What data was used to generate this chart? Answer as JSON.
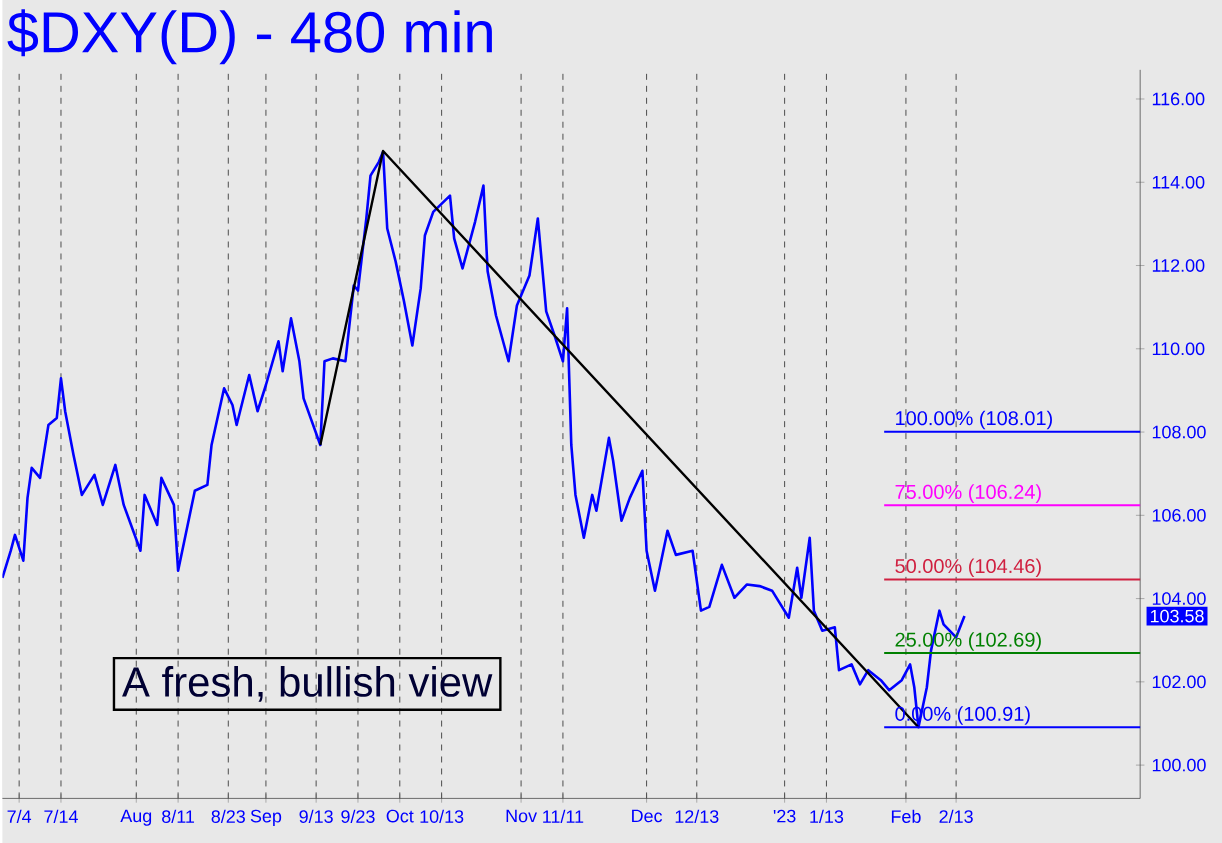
{
  "chart_data": {
    "type": "line",
    "title": "$DXY(D) - 480 min",
    "xlim": [
      "2022-06-30",
      "2023-03-29"
    ],
    "ylim": [
      99.2,
      116.7
    ],
    "xticks": [
      {
        "value": "2022-07-04",
        "label": "7/4"
      },
      {
        "value": "2022-07-14",
        "label": "7/14"
      },
      {
        "value": "2022-08-01",
        "label": "Aug"
      },
      {
        "value": "2022-08-11",
        "label": "8/11"
      },
      {
        "value": "2022-08-23",
        "label": "8/23"
      },
      {
        "value": "2022-09-01",
        "label": "Sep"
      },
      {
        "value": "2022-09-13",
        "label": "9/13"
      },
      {
        "value": "2022-09-23",
        "label": "9/23"
      },
      {
        "value": "2022-10-03",
        "label": "Oct"
      },
      {
        "value": "2022-10-13",
        "label": "10/13"
      },
      {
        "value": "2022-11-01",
        "label": "Nov"
      },
      {
        "value": "2022-11-11",
        "label": "11/11"
      },
      {
        "value": "2022-12-01",
        "label": "Dec"
      },
      {
        "value": "2022-12-13",
        "label": "12/13"
      },
      {
        "value": "2023-01-03",
        "label": "'23"
      },
      {
        "value": "2023-01-13",
        "label": "1/13"
      },
      {
        "value": "2023-02-01",
        "label": "Feb"
      },
      {
        "value": "2023-02-13",
        "label": "2/13"
      }
    ],
    "yticks": [
      {
        "value": 100,
        "label": "100.00"
      },
      {
        "value": 102,
        "label": "102.00"
      },
      {
        "value": 104,
        "label": "104.00"
      },
      {
        "value": 106,
        "label": "106.00"
      },
      {
        "value": 108,
        "label": "108.00"
      },
      {
        "value": 110,
        "label": "110.00"
      },
      {
        "value": 112,
        "label": "112.00"
      },
      {
        "value": 114,
        "label": "114.00"
      },
      {
        "value": 116,
        "label": "116.00"
      }
    ],
    "grid": "x",
    "marker": "none",
    "series": [
      {
        "color": "#0000ff",
        "x": [
          "2022-06-30",
          "2022-07-02",
          "2022-07-03",
          "2022-07-05",
          "2022-07-06",
          "2022-07-07",
          "2022-07-09",
          "2022-07-11",
          "2022-07-13",
          "2022-07-14",
          "2022-07-15",
          "2022-07-17",
          "2022-07-19",
          "2022-07-22",
          "2022-07-24",
          "2022-07-27",
          "2022-07-29",
          "2022-08-02",
          "2022-08-03",
          "2022-08-06",
          "2022-08-07",
          "2022-08-10",
          "2022-08-11",
          "2022-08-13",
          "2022-08-15",
          "2022-08-18",
          "2022-08-19",
          "2022-08-22",
          "2022-08-24",
          "2022-08-25",
          "2022-08-28",
          "2022-08-30",
          "2022-09-01",
          "2022-09-04",
          "2022-09-05",
          "2022-09-07",
          "2022-09-09",
          "2022-09-10",
          "2022-09-14",
          "2022-09-15",
          "2022-09-17",
          "2022-09-20",
          "2022-09-22",
          "2022-09-23",
          "2022-09-25",
          "2022-09-26",
          "2022-09-28",
          "2022-09-29",
          "2022-09-30",
          "2022-10-02",
          "2022-10-04",
          "2022-10-06",
          "2022-10-08",
          "2022-10-09",
          "2022-10-11",
          "2022-10-15",
          "2022-10-16",
          "2022-10-18",
          "2022-10-21",
          "2022-10-23",
          "2022-10-24",
          "2022-10-26",
          "2022-10-29",
          "2022-10-31",
          "2022-11-03",
          "2022-11-05",
          "2022-11-07",
          "2022-11-09",
          "2022-11-11",
          "2022-11-12",
          "2022-11-13",
          "2022-11-14",
          "2022-11-16",
          "2022-11-18",
          "2022-11-19",
          "2022-11-22",
          "2022-11-23",
          "2022-11-25",
          "2022-11-27",
          "2022-11-30",
          "2022-12-01",
          "2022-12-03",
          "2022-12-06",
          "2022-12-08",
          "2022-12-12",
          "2022-12-14",
          "2022-12-16",
          "2022-12-19",
          "2022-12-22",
          "2022-12-25",
          "2022-12-28",
          "2022-12-31",
          "2023-01-04",
          "2023-01-06",
          "2023-01-07",
          "2023-01-09",
          "2023-01-10",
          "2023-01-12",
          "2023-01-15",
          "2023-01-16",
          "2023-01-19",
          "2023-01-21",
          "2023-01-23",
          "2023-01-26",
          "2023-01-28",
          "2023-01-31",
          "2023-02-02",
          "2023-02-03",
          "2023-02-04",
          "2023-02-06",
          "2023-02-07",
          "2023-02-09",
          "2023-02-10",
          "2023-02-13",
          "2023-02-15"
        ],
        "values": [
          104.5,
          105.15,
          105.53,
          104.91,
          106.42,
          107.14,
          106.9,
          108.17,
          108.34,
          109.29,
          108.5,
          107.45,
          106.49,
          106.97,
          106.25,
          107.21,
          106.25,
          105.15,
          106.49,
          105.77,
          106.9,
          106.25,
          104.67,
          105.63,
          106.59,
          106.73,
          107.69,
          109.05,
          108.65,
          108.17,
          109.37,
          108.5,
          109.13,
          110.18,
          109.46,
          110.73,
          109.7,
          108.81,
          107.69,
          109.7,
          109.77,
          109.7,
          111.52,
          111.4,
          113.13,
          114.16,
          114.49,
          114.73,
          112.89,
          112.1,
          111.14,
          110.08,
          111.45,
          112.72,
          113.29,
          113.68,
          112.65,
          111.93,
          113.05,
          113.92,
          111.86,
          110.8,
          109.7,
          111.04,
          111.76,
          113.13,
          110.9,
          110.32,
          109.7,
          110.97,
          107.69,
          106.49,
          105.46,
          106.49,
          106.11,
          107.86,
          107.31,
          105.87,
          106.42,
          107.07,
          105.15,
          104.19,
          105.63,
          105.05,
          105.15,
          103.71,
          103.8,
          104.81,
          104.02,
          104.34,
          104.3,
          104.19,
          103.54,
          104.74,
          104.02,
          105.46,
          103.71,
          103.23,
          103.31,
          102.28,
          102.42,
          101.94,
          102.28,
          102.04,
          101.8,
          102.04,
          102.42,
          101.87,
          100.91,
          101.87,
          102.75,
          103.71,
          103.38,
          103.07,
          103.58
        ]
      },
      {
        "color": "#000000",
        "x": [
          "2022-09-14",
          "2022-09-29",
          "2023-02-04"
        ],
        "values": [
          107.69,
          114.75,
          100.91
        ]
      }
    ],
    "ref_lines": [
      {
        "axis": "y",
        "value": 108.01,
        "label": "100.00% (108.01)",
        "color": "#0000ff"
      },
      {
        "axis": "y",
        "value": 106.24,
        "label": "75.00% (106.24)",
        "color": "#ff00ff"
      },
      {
        "axis": "y",
        "value": 104.46,
        "label": "50.00% (104.46)",
        "color": "#d02040"
      },
      {
        "axis": "y",
        "value": 102.69,
        "label": "25.00% (102.69)",
        "color": "#008000"
      },
      {
        "axis": "y",
        "value": 100.91,
        "label": "0.00% (100.91)",
        "color": "#0000ff"
      }
    ],
    "annotations": [
      "A fresh, bullish view",
      "103.58"
    ]
  }
}
